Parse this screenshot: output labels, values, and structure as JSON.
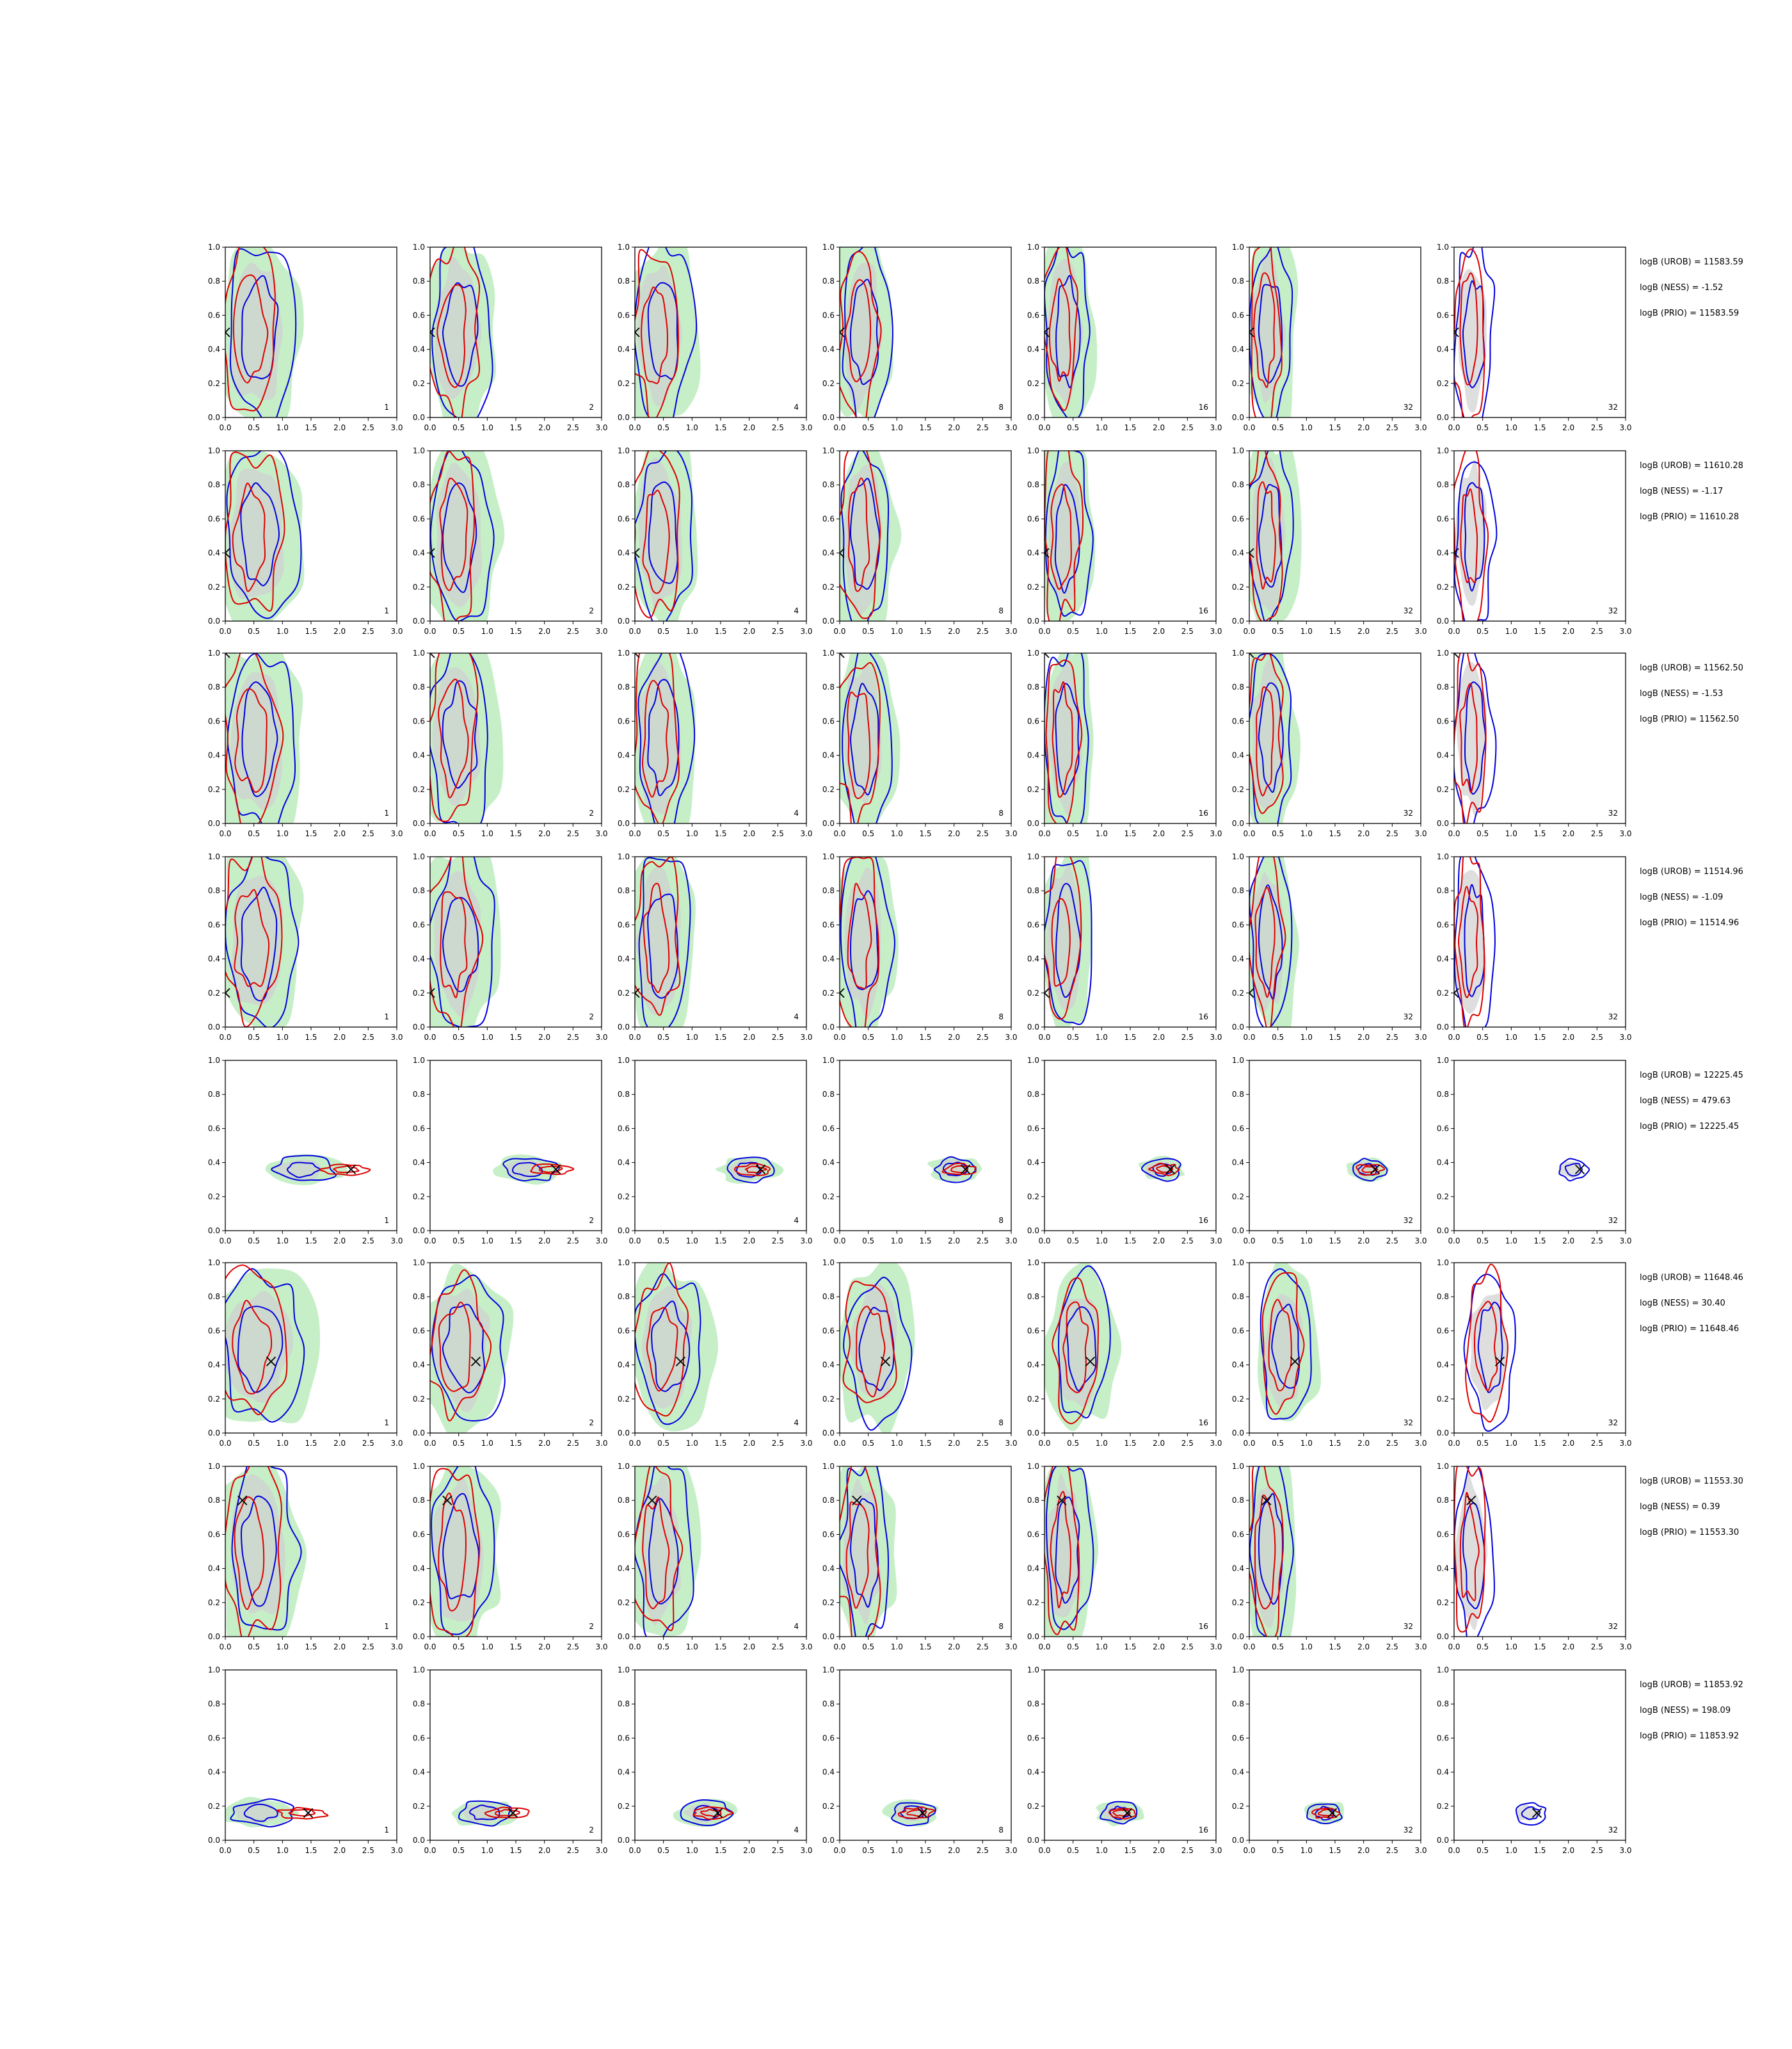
{
  "chart_data": {
    "type": "contour-grid",
    "xlim": [
      0.0,
      3.0
    ],
    "ylim": [
      0.0,
      1.0
    ],
    "xticks": [
      "0.0",
      "0.5",
      "1.0",
      "1.5",
      "2.0",
      "2.5",
      "3.0"
    ],
    "yticks": [
      "0.0",
      "0.2",
      "0.4",
      "0.6",
      "0.8",
      "1.0"
    ],
    "column_labels": [
      "1",
      "2",
      "4",
      "8",
      "16",
      "32",
      "32"
    ],
    "contour_colors": {
      "green_fill": "#c6efc8",
      "grey_fill": "#d0d0d0",
      "blue": "#0000dd",
      "red": "#dd0000",
      "true_marker": "#000000"
    },
    "rows": [
      {
        "truth": [
          0.0,
          0.5
        ],
        "logB": [
          "logB (UROB) = 11583.59",
          "logB (NESS) = -1.52",
          "logB (PRIO) = 11583.59"
        ]
      },
      {
        "truth": [
          0.0,
          0.4
        ],
        "logB": [
          "logB (UROB) = 11610.28",
          "logB (NESS) = -1.17",
          "logB (PRIO) = 11610.28"
        ]
      },
      {
        "truth": [
          0.0,
          1.0
        ],
        "logB": [
          "logB (UROB) = 11562.50",
          "logB (NESS) = -1.53",
          "logB (PRIO) = 11562.50"
        ]
      },
      {
        "truth": [
          0.0,
          0.2
        ],
        "logB": [
          "logB (UROB) = 11514.96",
          "logB (NESS) = -1.09",
          "logB (PRIO) = 11514.96"
        ]
      },
      {
        "truth": [
          2.2,
          0.36
        ],
        "logB": [
          "logB (UROB) = 12225.45",
          "logB (NESS) = 479.63",
          "logB (PRIO) = 12225.45"
        ]
      },
      {
        "truth": [
          0.8,
          0.42
        ],
        "logB": [
          "logB (UROB) = 11648.46",
          "logB (NESS) = 30.40",
          "logB (PRIO) = 11648.46"
        ]
      },
      {
        "truth": [
          0.3,
          0.8
        ],
        "logB": [
          "logB (UROB) = 11553.30",
          "logB (NESS) = 0.39",
          "logB (PRIO) = 11553.30"
        ]
      },
      {
        "truth": [
          1.45,
          0.16
        ],
        "logB": [
          "logB (UROB) = 11853.92",
          "logB (NESS) = 198.09",
          "logB (PRIO) = 11853.92"
        ]
      }
    ]
  }
}
